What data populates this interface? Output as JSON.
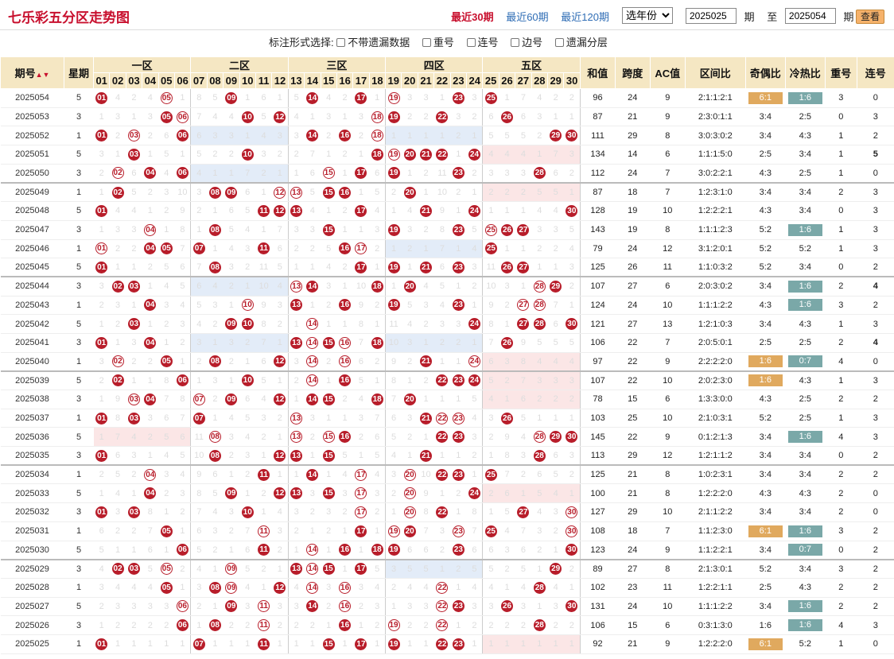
{
  "title": "七乐彩五分区走势图",
  "periods": [
    "最近30期",
    "最近60期",
    "最近120期"
  ],
  "year_select": "选年份",
  "range": {
    "from": "2025025",
    "label_qi": "期",
    "label_to": "至",
    "to": "2025054",
    "label_qi2": "期"
  },
  "query_label": "查看",
  "filter": {
    "label": "标注形式选择:",
    "options": [
      "不带遗漏数据",
      "重号",
      "连号",
      "边号",
      "遗漏分层"
    ]
  },
  "header": {
    "period": "期号",
    "week": "星期",
    "zones": [
      "一区",
      "二区",
      "三区",
      "四区",
      "五区"
    ],
    "sum": "和值",
    "span": "跨度",
    "ac": "AC值",
    "ratio": "区间比",
    "odd": "奇偶比",
    "hot": "冷热比",
    "repeat": "重号",
    "consec": "连号"
  },
  "numbers": [
    "01",
    "02",
    "03",
    "04",
    "05",
    "06",
    "07",
    "08",
    "09",
    "10",
    "11",
    "12",
    "13",
    "14",
    "15",
    "16",
    "17",
    "18",
    "19",
    "20",
    "21",
    "22",
    "23",
    "24",
    "25",
    "26",
    "27",
    "28",
    "29",
    "30"
  ],
  "rows": [
    {
      "p": "2025054",
      "w": "5",
      "n": [
        1,
        5,
        9,
        14,
        17,
        19,
        23,
        25
      ],
      "sum": "96",
      "span": "24",
      "ac": "9",
      "ratio": "2:1:1:2:1",
      "odd": "6:1",
      "hot": "1:6",
      "rep": "3",
      "con": "0",
      "hlo": true,
      "hlh": true
    },
    {
      "p": "2025053",
      "w": "3",
      "n": [
        5,
        6,
        10,
        12,
        18,
        19,
        22,
        26
      ],
      "sum": "87",
      "span": "21",
      "ac": "9",
      "ratio": "2:3:0:1:1",
      "odd": "3:4",
      "hot": "2:5",
      "rep": "0",
      "con": "3"
    },
    {
      "p": "2025052",
      "w": "1",
      "n": [
        1,
        3,
        6,
        14,
        16,
        18,
        29,
        30
      ],
      "sum": "111",
      "span": "29",
      "ac": "8",
      "ratio": "3:0:3:0:2",
      "odd": "3:4",
      "hot": "4:3",
      "rep": "1",
      "con": "2"
    },
    {
      "p": "2025051",
      "w": "5",
      "n": [
        3,
        10,
        18,
        19,
        20,
        21,
        22,
        24
      ],
      "sum": "134",
      "span": "14",
      "ac": "6",
      "ratio": "1:1:1:5:0",
      "odd": "2:5",
      "hot": "3:4",
      "rep": "1",
      "con": "5",
      "cteal": true
    },
    {
      "p": "2025050",
      "w": "3",
      "n": [
        2,
        4,
        6,
        15,
        17,
        19,
        23,
        28
      ],
      "sum": "112",
      "span": "24",
      "ac": "7",
      "ratio": "3:0:2:2:1",
      "odd": "4:3",
      "hot": "2:5",
      "rep": "1",
      "con": "0"
    },
    {
      "p": "2025049",
      "w": "1",
      "n": [
        2,
        8,
        9,
        12,
        13,
        15,
        16,
        20
      ],
      "sum": "87",
      "span": "18",
      "ac": "7",
      "ratio": "1:2:3:1:0",
      "odd": "3:4",
      "hot": "3:4",
      "rep": "2",
      "con": "3",
      "gs": true
    },
    {
      "p": "2025048",
      "w": "5",
      "n": [
        1,
        11,
        12,
        13,
        17,
        21,
        24,
        30
      ],
      "sum": "128",
      "span": "19",
      "ac": "10",
      "ratio": "1:2:2:2:1",
      "odd": "4:3",
      "hot": "3:4",
      "rep": "0",
      "con": "3"
    },
    {
      "p": "2025047",
      "w": "3",
      "n": [
        4,
        8,
        15,
        19,
        23,
        25,
        26,
        27
      ],
      "sum": "143",
      "span": "19",
      "ac": "8",
      "ratio": "1:1:1:2:3",
      "odd": "5:2",
      "hot": "1:6",
      "rep": "1",
      "con": "3",
      "hlh": true
    },
    {
      "p": "2025046",
      "w": "1",
      "n": [
        1,
        4,
        5,
        7,
        11,
        16,
        17,
        25
      ],
      "sum": "79",
      "span": "24",
      "ac": "12",
      "ratio": "3:1:2:0:1",
      "odd": "5:2",
      "hot": "5:2",
      "rep": "1",
      "con": "3"
    },
    {
      "p": "2025045",
      "w": "5",
      "n": [
        1,
        8,
        17,
        19,
        21,
        23,
        26,
        27
      ],
      "sum": "125",
      "span": "26",
      "ac": "11",
      "ratio": "1:1:0:3:2",
      "odd": "5:2",
      "hot": "3:4",
      "rep": "0",
      "con": "2"
    },
    {
      "p": "2025044",
      "w": "3",
      "n": [
        2,
        3,
        13,
        14,
        18,
        20,
        28,
        29
      ],
      "sum": "107",
      "span": "27",
      "ac": "6",
      "ratio": "2:0:3:0:2",
      "odd": "3:4",
      "hot": "1:6",
      "rep": "2",
      "con": "4",
      "cteal": true,
      "hlh": true,
      "gs": true
    },
    {
      "p": "2025043",
      "w": "1",
      "n": [
        4,
        10,
        13,
        16,
        19,
        23,
        27,
        28
      ],
      "sum": "124",
      "span": "24",
      "ac": "10",
      "ratio": "1:1:1:2:2",
      "odd": "4:3",
      "hot": "1:6",
      "rep": "3",
      "con": "2",
      "hlh": true
    },
    {
      "p": "2025042",
      "w": "5",
      "n": [
        3,
        9,
        10,
        14,
        24,
        27,
        28,
        30
      ],
      "sum": "121",
      "span": "27",
      "ac": "13",
      "ratio": "1:2:1:0:3",
      "odd": "3:4",
      "hot": "4:3",
      "rep": "1",
      "con": "3"
    },
    {
      "p": "2025041",
      "w": "3",
      "n": [
        1,
        4,
        13,
        14,
        15,
        16,
        18,
        26
      ],
      "sum": "106",
      "span": "22",
      "ac": "7",
      "ratio": "2:0:5:0:1",
      "odd": "2:5",
      "hot": "2:5",
      "rep": "2",
      "con": "4",
      "cteal": true
    },
    {
      "p": "2025040",
      "w": "1",
      "n": [
        2,
        5,
        8,
        12,
        14,
        16,
        21,
        24
      ],
      "sum": "97",
      "span": "22",
      "ac": "9",
      "ratio": "2:2:2:2:0",
      "odd": "1:6",
      "hot": "0:7",
      "rep": "4",
      "con": "0",
      "hlo": true,
      "hlh": true,
      "rred": true
    },
    {
      "p": "2025039",
      "w": "5",
      "n": [
        2,
        6,
        10,
        14,
        16,
        22,
        23,
        24
      ],
      "sum": "107",
      "span": "22",
      "ac": "10",
      "ratio": "2:0:2:3:0",
      "odd": "1:6",
      "hot": "4:3",
      "rep": "1",
      "con": "3",
      "hlo": true,
      "gs": true
    },
    {
      "p": "2025038",
      "w": "3",
      "n": [
        3,
        4,
        7,
        9,
        12,
        14,
        15,
        18,
        20
      ],
      "sum": "78",
      "span": "15",
      "ac": "6",
      "ratio": "1:3:3:0:0",
      "odd": "4:3",
      "hot": "2:5",
      "rep": "2",
      "con": "2"
    },
    {
      "p": "2025037",
      "w": "1",
      "n": [
        1,
        3,
        7,
        13,
        21,
        22,
        23,
        26
      ],
      "sum": "103",
      "span": "25",
      "ac": "10",
      "ratio": "2:1:0:3:1",
      "odd": "5:2",
      "hot": "2:5",
      "rep": "1",
      "con": "3"
    },
    {
      "p": "2025036",
      "w": "5",
      "n": [
        8,
        13,
        15,
        16,
        22,
        23,
        28,
        29,
        30
      ],
      "sum": "145",
      "span": "22",
      "ac": "9",
      "ratio": "0:1:2:1:3",
      "odd": "3:4",
      "hot": "1:6",
      "rep": "4",
      "con": "3",
      "hlh": true,
      "rred": true
    },
    {
      "p": "2025035",
      "w": "3",
      "n": [
        1,
        8,
        12,
        13,
        15,
        21,
        28
      ],
      "sum": "113",
      "span": "29",
      "ac": "12",
      "ratio": "1:2:1:1:2",
      "odd": "3:4",
      "hot": "3:4",
      "rep": "0",
      "con": "2"
    },
    {
      "p": "2025034",
      "w": "1",
      "n": [
        4,
        11,
        14,
        17,
        20,
        22,
        23,
        25
      ],
      "sum": "125",
      "span": "21",
      "ac": "8",
      "ratio": "1:0:2:3:1",
      "odd": "3:4",
      "hot": "3:4",
      "rep": "2",
      "con": "2",
      "gs": true
    },
    {
      "p": "2025033",
      "w": "5",
      "n": [
        4,
        9,
        12,
        13,
        15,
        17,
        20,
        24
      ],
      "sum": "100",
      "span": "21",
      "ac": "8",
      "ratio": "1:2:2:2:0",
      "odd": "4:3",
      "hot": "4:3",
      "rep": "2",
      "con": "0"
    },
    {
      "p": "2025032",
      "w": "3",
      "n": [
        1,
        3,
        10,
        17,
        20,
        22,
        27,
        30
      ],
      "sum": "127",
      "span": "29",
      "ac": "10",
      "ratio": "2:1:1:2:2",
      "odd": "3:4",
      "hot": "3:4",
      "rep": "2",
      "con": "0"
    },
    {
      "p": "2025031",
      "w": "1",
      "n": [
        5,
        11,
        17,
        19,
        20,
        23,
        25,
        30
      ],
      "sum": "108",
      "span": "18",
      "ac": "7",
      "ratio": "1:1:2:3:0",
      "odd": "6:1",
      "hot": "1:6",
      "rep": "3",
      "con": "2",
      "hlo": true,
      "hlh": true
    },
    {
      "p": "2025030",
      "w": "5",
      "n": [
        6,
        11,
        14,
        16,
        18,
        19,
        23,
        30
      ],
      "sum": "123",
      "span": "24",
      "ac": "9",
      "ratio": "1:1:2:2:1",
      "odd": "3:4",
      "hot": "0:7",
      "rep": "0",
      "con": "2",
      "hlh": true
    },
    {
      "p": "2025029",
      "w": "3",
      "n": [
        2,
        3,
        5,
        9,
        13,
        14,
        15,
        17,
        29
      ],
      "sum": "89",
      "span": "27",
      "ac": "8",
      "ratio": "2:1:3:0:1",
      "odd": "5:2",
      "hot": "3:4",
      "rep": "3",
      "con": "2",
      "gs": true
    },
    {
      "p": "2025028",
      "w": "1",
      "n": [
        5,
        8,
        9,
        12,
        14,
        16,
        22,
        28
      ],
      "sum": "102",
      "span": "23",
      "ac": "11",
      "ratio": "1:2:2:1:1",
      "odd": "2:5",
      "hot": "4:3",
      "rep": "2",
      "con": "2"
    },
    {
      "p": "2025027",
      "w": "5",
      "n": [
        6,
        9,
        11,
        14,
        16,
        22,
        23,
        26,
        30
      ],
      "sum": "131",
      "span": "24",
      "ac": "10",
      "ratio": "1:1:1:2:2",
      "odd": "3:4",
      "hot": "1:6",
      "rep": "2",
      "con": "2",
      "hlh": true
    },
    {
      "p": "2025026",
      "w": "3",
      "n": [
        6,
        8,
        11,
        16,
        19,
        22,
        28
      ],
      "sum": "106",
      "span": "15",
      "ac": "6",
      "ratio": "0:3:1:3:0",
      "odd": "1:6",
      "hot": "1:6",
      "rep": "4",
      "con": "3",
      "hlh": true,
      "rred": true
    },
    {
      "p": "2025025",
      "w": "1",
      "n": [
        1,
        7,
        11,
        15,
        17,
        19,
        22,
        23
      ],
      "sum": "92",
      "span": "21",
      "ac": "9",
      "ratio": "1:2:2:2:0",
      "odd": "6:1",
      "hot": "5:2",
      "rep": "1",
      "con": "0",
      "hlo": true
    }
  ]
}
